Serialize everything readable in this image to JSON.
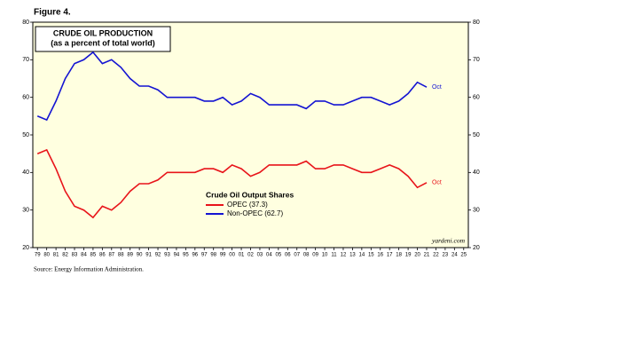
{
  "chart_data": {
    "type": "line",
    "figure_label": "Figure 4.",
    "title": "CRUDE OIL PRODUCTION",
    "subtitle": "(as a percent of total world)",
    "legend_title": "Crude Oil Output Shares",
    "source": "Source: Energy Information Administration.",
    "credit": "yardeni.com",
    "annotations": [
      "Oct",
      "Oct"
    ],
    "x": [
      1979,
      1980,
      1981,
      1982,
      1983,
      1984,
      1985,
      1986,
      1987,
      1988,
      1989,
      1990,
      1991,
      1992,
      1993,
      1994,
      1995,
      1996,
      1997,
      1998,
      1999,
      2000,
      2001,
      2002,
      2003,
      2004,
      2005,
      2006,
      2007,
      2008,
      2009,
      2010,
      2011,
      2012,
      2013,
      2014,
      2015,
      2016,
      2017,
      2018,
      2019,
      2020,
      2021
    ],
    "series": [
      {
        "name": "OPEC (37.3)",
        "color": "#e8141a",
        "values": [
          45,
          46,
          41,
          35,
          31,
          30,
          28,
          31,
          30,
          32,
          35,
          37,
          37,
          38,
          40,
          40,
          40,
          40,
          41,
          41,
          40,
          42,
          41,
          39,
          40,
          42,
          42,
          42,
          42,
          43,
          41,
          41,
          42,
          42,
          41,
          40,
          40,
          41,
          42,
          41,
          39,
          36,
          37.3
        ]
      },
      {
        "name": "Non-OPEC (62.7)",
        "color": "#1414d2",
        "values": [
          55,
          54,
          59,
          65,
          69,
          70,
          72,
          69,
          70,
          68,
          65,
          63,
          63,
          62,
          60,
          60,
          60,
          60,
          59,
          59,
          60,
          58,
          59,
          61,
          60,
          58,
          58,
          58,
          58,
          57,
          59,
          59,
          58,
          58,
          59,
          60,
          60,
          59,
          58,
          59,
          61,
          64,
          62.7
        ]
      }
    ],
    "xlim": [
      1978.5,
      2025.5
    ],
    "xticks": [
      {
        "value": 1979,
        "label": "79"
      },
      {
        "value": 1980,
        "label": "80"
      },
      {
        "value": 1981,
        "label": "81"
      },
      {
        "value": 1982,
        "label": "82"
      },
      {
        "value": 1983,
        "label": "83"
      },
      {
        "value": 1984,
        "label": "84"
      },
      {
        "value": 1985,
        "label": "85"
      },
      {
        "value": 1986,
        "label": "86"
      },
      {
        "value": 1987,
        "label": "87"
      },
      {
        "value": 1988,
        "label": "88"
      },
      {
        "value": 1989,
        "label": "89"
      },
      {
        "value": 1990,
        "label": "90"
      },
      {
        "value": 1991,
        "label": "91"
      },
      {
        "value": 1992,
        "label": "92"
      },
      {
        "value": 1993,
        "label": "93"
      },
      {
        "value": 1994,
        "label": "94"
      },
      {
        "value": 1995,
        "label": "95"
      },
      {
        "value": 1996,
        "label": "96"
      },
      {
        "value": 1997,
        "label": "97"
      },
      {
        "value": 1998,
        "label": "98"
      },
      {
        "value": 1999,
        "label": "99"
      },
      {
        "value": 2000,
        "label": "00"
      },
      {
        "value": 2001,
        "label": "01"
      },
      {
        "value": 2002,
        "label": "02"
      },
      {
        "value": 2003,
        "label": "03"
      },
      {
        "value": 2004,
        "label": "04"
      },
      {
        "value": 2005,
        "label": "05"
      },
      {
        "value": 2006,
        "label": "06"
      },
      {
        "value": 2007,
        "label": "07"
      },
      {
        "value": 2008,
        "label": "08"
      },
      {
        "value": 2009,
        "label": "09"
      },
      {
        "value": 2010,
        "label": "10"
      },
      {
        "value": 2011,
        "label": "11"
      },
      {
        "value": 2012,
        "label": "12"
      },
      {
        "value": 2013,
        "label": "13"
      },
      {
        "value": 2014,
        "label": "14"
      },
      {
        "value": 2015,
        "label": "15"
      },
      {
        "value": 2016,
        "label": "16"
      },
      {
        "value": 2017,
        "label": "17"
      },
      {
        "value": 2018,
        "label": "18"
      },
      {
        "value": 2019,
        "label": "19"
      },
      {
        "value": 2020,
        "label": "20"
      },
      {
        "value": 2021,
        "label": "21"
      },
      {
        "value": 2022,
        "label": "22"
      },
      {
        "value": 2023,
        "label": "23"
      },
      {
        "value": 2024,
        "label": "24"
      },
      {
        "value": 2025,
        "label": "25"
      }
    ],
    "ylim": [
      20,
      80
    ],
    "yticks": [
      20,
      30,
      40,
      50,
      60,
      70,
      80
    ],
    "y2lim": [
      20,
      80
    ],
    "y2ticks": [
      20,
      30,
      40,
      50,
      60,
      70,
      80
    ],
    "grid": false
  }
}
